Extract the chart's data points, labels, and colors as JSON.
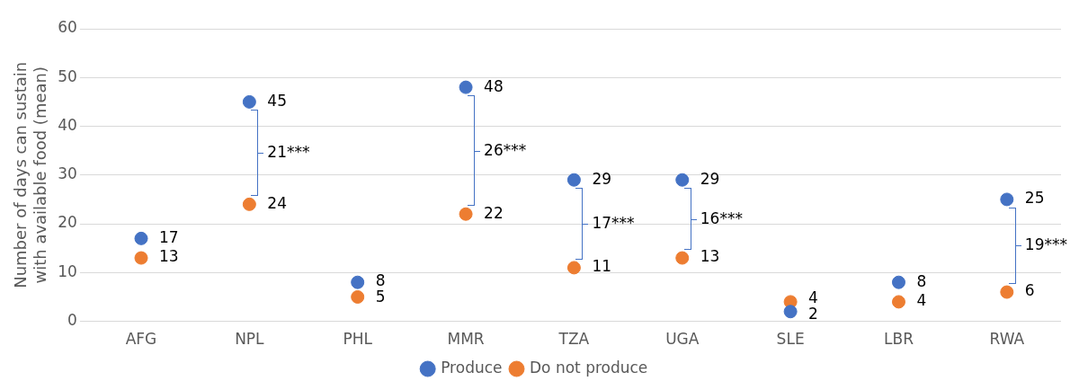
{
  "chart_data": {
    "type": "scatter",
    "ylabel": "Number of days can sustain with available food (mean)",
    "categories": [
      "AFG",
      "NPL",
      "PHL",
      "MMR",
      "TZA",
      "UGA",
      "SLE",
      "LBR",
      "RWA"
    ],
    "series": [
      {
        "name": "Produce",
        "color": "#4472c4",
        "values": [
          17,
          45,
          8,
          48,
          29,
          29,
          2,
          8,
          25
        ]
      },
      {
        "name": "Do not produce",
        "color": "#ed7d31",
        "values": [
          13,
          24,
          5,
          22,
          11,
          13,
          4,
          4,
          6
        ]
      }
    ],
    "ylim": [
      0,
      60
    ],
    "yticks": [
      0,
      10,
      20,
      30,
      40,
      50,
      60
    ],
    "grid": "y",
    "legend": "bottom",
    "marker": "circle",
    "data_labels": true,
    "annotations": [
      "21***",
      "26***",
      "17***",
      "16***",
      "19***"
    ]
  }
}
